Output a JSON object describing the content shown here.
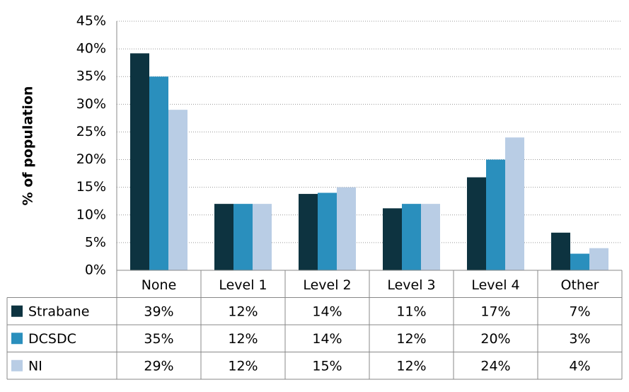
{
  "chart_data": {
    "type": "bar",
    "ylabel": "% of population",
    "categories": [
      "None",
      "Level 1",
      "Level 2",
      "Level 3",
      "Level 4",
      "Other"
    ],
    "series": [
      {
        "name": "Strabane",
        "color": "#0d3340",
        "values": [
          39.2,
          12,
          13.8,
          11.2,
          16.8,
          6.8
        ],
        "value_labels": [
          "39%",
          "12%",
          "14%",
          "11%",
          "17%",
          "7%"
        ]
      },
      {
        "name": "DCSDC",
        "color": "#2a8fbd",
        "values": [
          35,
          12,
          14,
          12,
          20,
          3
        ],
        "value_labels": [
          "35%",
          "12%",
          "14%",
          "12%",
          "20%",
          "3%"
        ]
      },
      {
        "name": "NI",
        "color": "#b9cde5",
        "values": [
          29,
          12,
          15,
          12,
          24,
          4
        ],
        "value_labels": [
          "29%",
          "12%",
          "15%",
          "12%",
          "24%",
          "4%"
        ]
      }
    ],
    "ylim": [
      0,
      45
    ],
    "yticks": [
      {
        "value": 0,
        "label": "0%"
      },
      {
        "value": 5,
        "label": "5%"
      },
      {
        "value": 10,
        "label": "10%"
      },
      {
        "value": 15,
        "label": "15%"
      },
      {
        "value": 20,
        "label": "20%"
      },
      {
        "value": 25,
        "label": "25%"
      },
      {
        "value": 30,
        "label": "30%"
      },
      {
        "value": 35,
        "label": "35%"
      },
      {
        "value": 40,
        "label": "40%"
      },
      {
        "value": 45,
        "label": "45%"
      }
    ],
    "grid": true
  }
}
